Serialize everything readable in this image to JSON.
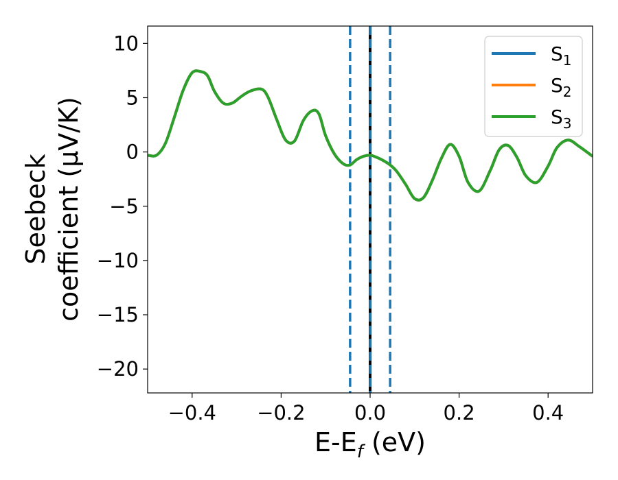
{
  "chart_data": {
    "type": "line",
    "xlabel": "E-E",
    "xlabel_sub": "f",
    "xlabel_unit": " (eV)",
    "ylabel_line1": "Seebeck",
    "ylabel_line2": "coefficient  (μV/K)",
    "xlim": [
      -0.5,
      0.5
    ],
    "ylim": [
      -22.2,
      11.6
    ],
    "xticks": [
      -0.4,
      -0.2,
      0.0,
      0.2,
      0.4
    ],
    "xtick_labels": [
      "−0.4",
      "−0.2",
      "0.0",
      "0.2",
      "0.4"
    ],
    "yticks": [
      10,
      5,
      0,
      -5,
      -10,
      -15,
      -20
    ],
    "ytick_labels": [
      "10",
      "5",
      "0",
      "−5",
      "−10",
      "−15",
      "−20"
    ],
    "grid": false,
    "legend_position": "top-right",
    "legend": [
      {
        "base": "S",
        "sub": "1"
      },
      {
        "base": "S",
        "sub": "2"
      },
      {
        "base": "S",
        "sub": "3"
      }
    ],
    "series": [
      {
        "name": "S1",
        "color": "#1f77b4",
        "x": [
          -0.5,
          -0.48,
          -0.46,
          -0.44,
          -0.42,
          -0.4,
          -0.38,
          -0.365,
          -0.35,
          -0.33,
          -0.31,
          -0.29,
          -0.27,
          -0.245,
          -0.23,
          -0.21,
          -0.19,
          -0.17,
          -0.15,
          -0.13,
          -0.115,
          -0.1,
          -0.08,
          -0.06,
          -0.045,
          -0.03,
          -0.015,
          0.0,
          0.015,
          0.03,
          0.045,
          0.06,
          0.08,
          0.1,
          0.12,
          0.14,
          0.16,
          0.18,
          0.2,
          0.22,
          0.245,
          0.27,
          0.29,
          0.31,
          0.33,
          0.35,
          0.375,
          0.4,
          0.42,
          0.445,
          0.47,
          0.5
        ],
        "y": [
          -0.3,
          -0.3,
          0.8,
          3.2,
          5.7,
          7.3,
          7.4,
          7.0,
          5.6,
          4.5,
          4.5,
          5.1,
          5.6,
          5.8,
          5.1,
          3.0,
          1.1,
          1.0,
          2.9,
          3.8,
          3.5,
          1.5,
          -0.2,
          -1.1,
          -1.2,
          -0.7,
          -0.4,
          -0.3,
          -0.5,
          -0.8,
          -1.2,
          -1.8,
          -3.0,
          -4.3,
          -4.2,
          -2.6,
          -0.6,
          0.7,
          -0.4,
          -2.8,
          -3.6,
          -1.7,
          0.2,
          0.6,
          -0.5,
          -2.2,
          -2.8,
          -1.3,
          0.4,
          1.1,
          0.5,
          -0.4
        ]
      },
      {
        "name": "S2",
        "color": "#ff7f0e",
        "x": [
          -0.5,
          -0.48,
          -0.46,
          -0.44,
          -0.42,
          -0.4,
          -0.38,
          -0.365,
          -0.35,
          -0.33,
          -0.31,
          -0.29,
          -0.27,
          -0.245,
          -0.23,
          -0.21,
          -0.19,
          -0.17,
          -0.15,
          -0.13,
          -0.115,
          -0.1,
          -0.08,
          -0.06,
          -0.045,
          -0.03,
          -0.015,
          0.0,
          0.015,
          0.03,
          0.045,
          0.06,
          0.08,
          0.1,
          0.12,
          0.14,
          0.16,
          0.18,
          0.2,
          0.22,
          0.245,
          0.27,
          0.29,
          0.31,
          0.33,
          0.35,
          0.375,
          0.4,
          0.42,
          0.445,
          0.47,
          0.5
        ],
        "y": [
          -0.3,
          -0.3,
          0.8,
          3.2,
          5.7,
          7.3,
          7.4,
          7.0,
          5.6,
          4.5,
          4.5,
          5.1,
          5.6,
          5.8,
          5.1,
          3.0,
          1.1,
          1.0,
          2.9,
          3.8,
          3.5,
          1.5,
          -0.2,
          -1.1,
          -1.2,
          -0.7,
          -0.4,
          -0.3,
          -0.5,
          -0.8,
          -1.2,
          -1.8,
          -3.0,
          -4.3,
          -4.2,
          -2.6,
          -0.6,
          0.7,
          -0.4,
          -2.8,
          -3.6,
          -1.7,
          0.2,
          0.6,
          -0.5,
          -2.2,
          -2.8,
          -1.3,
          0.4,
          1.1,
          0.5,
          -0.4
        ]
      },
      {
        "name": "S3",
        "color": "#2ca02c",
        "x": [
          -0.5,
          -0.48,
          -0.46,
          -0.44,
          -0.42,
          -0.4,
          -0.38,
          -0.365,
          -0.35,
          -0.33,
          -0.31,
          -0.29,
          -0.27,
          -0.245,
          -0.23,
          -0.21,
          -0.19,
          -0.17,
          -0.15,
          -0.13,
          -0.115,
          -0.1,
          -0.08,
          -0.06,
          -0.045,
          -0.03,
          -0.015,
          0.0,
          0.015,
          0.03,
          0.045,
          0.06,
          0.08,
          0.1,
          0.12,
          0.14,
          0.16,
          0.18,
          0.2,
          0.22,
          0.245,
          0.27,
          0.29,
          0.31,
          0.33,
          0.35,
          0.375,
          0.4,
          0.42,
          0.445,
          0.47,
          0.5
        ],
        "y": [
          -0.3,
          -0.3,
          0.8,
          3.2,
          5.7,
          7.3,
          7.4,
          7.0,
          5.6,
          4.5,
          4.5,
          5.1,
          5.6,
          5.8,
          5.1,
          3.0,
          1.1,
          1.0,
          2.9,
          3.8,
          3.5,
          1.5,
          -0.2,
          -1.1,
          -1.2,
          -0.7,
          -0.4,
          -0.3,
          -0.5,
          -0.8,
          -1.2,
          -1.8,
          -3.0,
          -4.3,
          -4.2,
          -2.6,
          -0.6,
          0.7,
          -0.4,
          -2.8,
          -3.6,
          -1.7,
          0.2,
          0.6,
          -0.5,
          -2.2,
          -2.8,
          -1.3,
          0.4,
          1.1,
          0.5,
          -0.4
        ]
      }
    ],
    "vlines": [
      {
        "x": -0.045,
        "style": "dashed",
        "color": "#1f77b4"
      },
      {
        "x": 0.045,
        "style": "dashed",
        "color": "#1f77b4"
      },
      {
        "x": 0.0,
        "style": "solid",
        "color": "#000000"
      },
      {
        "x": 0.0,
        "style": "dashed",
        "color": "#1f77b4"
      }
    ]
  }
}
